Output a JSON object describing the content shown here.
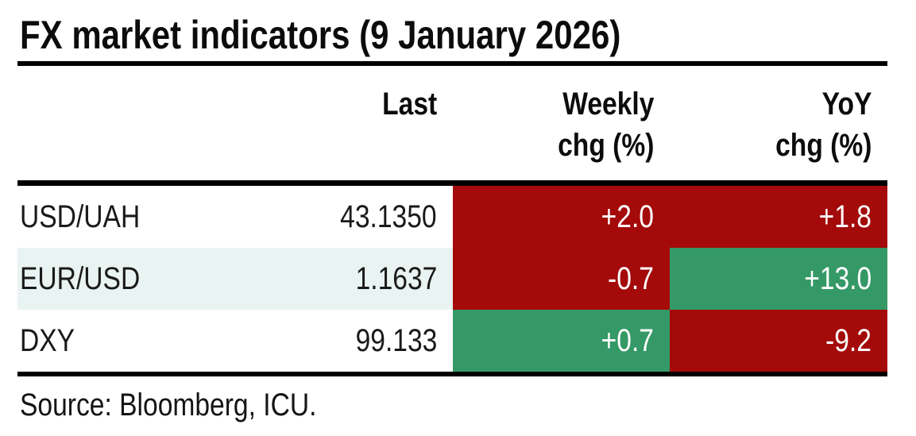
{
  "title": "FX market indicators (9 January 2026)",
  "source": "Source: Bloomberg, ICU.",
  "colors": {
    "negative_red": "#a40a0a",
    "positive_green": "#349966",
    "row_highlight": "#e9f4f2",
    "rule_black": "#000000"
  },
  "table": {
    "headers": [
      {
        "line1": "",
        "line2": ""
      },
      {
        "line1": "Last",
        "line2": ""
      },
      {
        "line1": "Weekly",
        "line2": "chg (%)"
      },
      {
        "line1": "YoY",
        "line2": "chg (%)"
      }
    ],
    "rows": [
      {
        "cells": [
          {
            "text": "USD/UAH",
            "bg": "white"
          },
          {
            "text": "43.1350",
            "bg": "white"
          },
          {
            "text": "+2.0",
            "bg": "red"
          },
          {
            "text": "+1.8",
            "bg": "red"
          }
        ]
      },
      {
        "cells": [
          {
            "text": "EUR/USD",
            "bg": "light"
          },
          {
            "text": "1.1637",
            "bg": "light"
          },
          {
            "text": "-0.7",
            "bg": "red"
          },
          {
            "text": "+13.0",
            "bg": "green"
          }
        ]
      },
      {
        "cells": [
          {
            "text": "DXY",
            "bg": "white"
          },
          {
            "text": "99.133",
            "bg": "white"
          },
          {
            "text": "+0.7",
            "bg": "green"
          },
          {
            "text": "-9.2",
            "bg": "red"
          }
        ]
      }
    ]
  },
  "chart_data": {
    "type": "table",
    "title": "FX market indicators (9 January 2026)",
    "columns": [
      "",
      "Last",
      "Weekly chg (%)",
      "YoY chg (%)"
    ],
    "rows": [
      {
        "label": "USD/UAH",
        "last": 43.135,
        "weekly_chg_pct": 2.0,
        "yoy_chg_pct": 1.8
      },
      {
        "label": "EUR/USD",
        "last": 1.1637,
        "weekly_chg_pct": -0.7,
        "yoy_chg_pct": 13.0
      },
      {
        "label": "DXY",
        "last": 99.133,
        "weekly_chg_pct": 0.7,
        "yoy_chg_pct": -9.2
      }
    ],
    "cell_colors": [
      {
        "label": "USD/UAH",
        "weekly": "red",
        "yoy": "red"
      },
      {
        "label": "EUR/USD",
        "weekly": "red",
        "yoy": "green"
      },
      {
        "label": "DXY",
        "weekly": "green",
        "yoy": "red"
      }
    ],
    "layout": {
      "row_highlight": "EUR/USD",
      "value_alignment": "right"
    },
    "source": "Source: Bloomberg, ICU."
  }
}
